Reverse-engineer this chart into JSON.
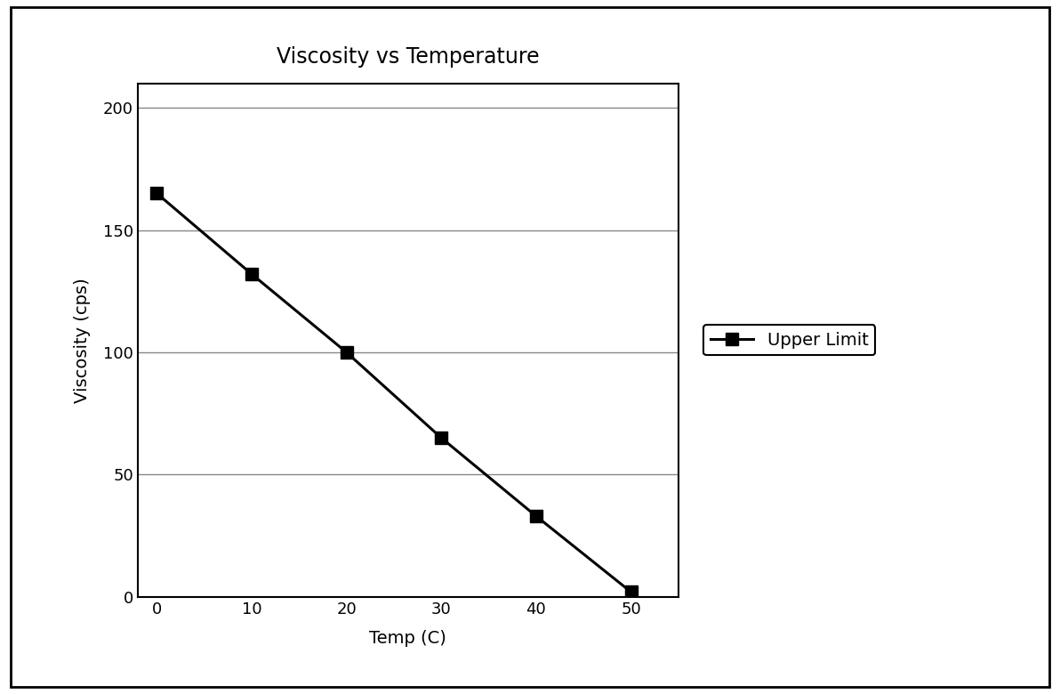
{
  "title": "Viscosity vs Temperature",
  "xlabel": "Temp (C)",
  "ylabel": "Viscosity (cps)",
  "x": [
    0,
    10,
    20,
    30,
    40,
    50
  ],
  "y": [
    165,
    132,
    100,
    65,
    33,
    2
  ],
  "xlim": [
    -2,
    55
  ],
  "ylim": [
    0,
    210
  ],
  "yticks": [
    0,
    50,
    100,
    150,
    200
  ],
  "xticks": [
    0,
    10,
    20,
    30,
    40,
    50
  ],
  "line_color": "#000000",
  "marker": "s",
  "marker_color": "#000000",
  "marker_size": 10,
  "line_width": 2.2,
  "legend_label": "Upper Limit",
  "title_fontsize": 17,
  "label_fontsize": 14,
  "tick_fontsize": 13,
  "legend_fontsize": 14,
  "background_color": "#ffffff",
  "grid_color": "#888888",
  "outer_border_color": "#000000"
}
